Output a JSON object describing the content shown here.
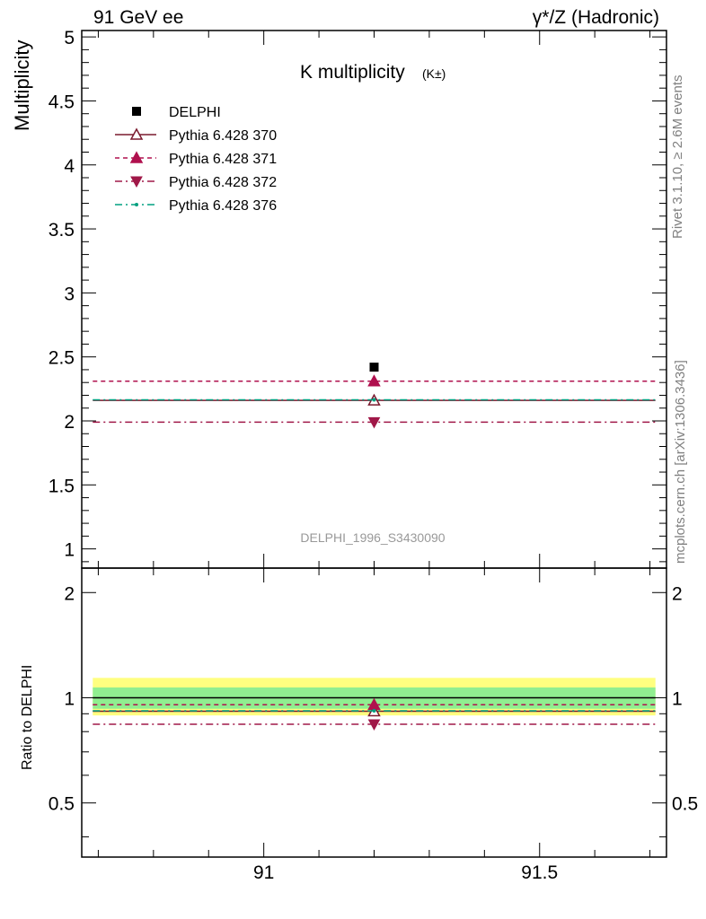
{
  "header": {
    "left": "91 GeV ee",
    "right": "γ*/Z (Hadronic)"
  },
  "side_labels": {
    "rivet": "Rivet 3.1.10, ≥ 2.6M events",
    "mcplots": "mcplots.cern.ch [arXiv:1306.3436]"
  },
  "colors": {
    "delphi": "#000000",
    "p370": "#7a1a2e",
    "p371": "#b0104e",
    "p372": "#a01848",
    "p376": "#00a080",
    "band_inner": "#90ee90",
    "band_outer": "#ffff80"
  },
  "chart_data": [
    {
      "type": "scatter",
      "title": "K multiplicity",
      "title_sub": "(K±)",
      "ylabel": "Multiplicity",
      "watermark": "DELPHI_1996_S3430090",
      "xlim": [
        90.67,
        91.73
      ],
      "ylim": [
        0.85,
        5.05
      ],
      "yticks": [
        1,
        1.5,
        2,
        2.5,
        3,
        3.5,
        4,
        4.5,
        5
      ],
      "ytick_labels": [
        "1",
        "1.5",
        "2",
        "2.5",
        "3",
        "3.5",
        "4",
        "4.5",
        "5"
      ],
      "legend_position": "top-left",
      "x_center": 91.2,
      "x_range": [
        90.69,
        91.71
      ],
      "series": [
        {
          "name": "DELPHI",
          "key": "delphi",
          "marker": "square",
          "line": "none",
          "y": 2.42
        },
        {
          "name": "Pythia 6.428 370",
          "key": "p370",
          "marker": "triangle-up-open",
          "line": "solid",
          "y": 2.16
        },
        {
          "name": "Pythia 6.428 371",
          "key": "p371",
          "marker": "triangle-up",
          "line": "dashed",
          "y": 2.31
        },
        {
          "name": "Pythia 6.428 372",
          "key": "p372",
          "marker": "triangle-down",
          "line": "dashdot",
          "y": 1.99
        },
        {
          "name": "Pythia 6.428 376",
          "key": "p376",
          "marker": "dot",
          "line": "dashdot",
          "y": 2.165
        }
      ]
    },
    {
      "type": "scatter",
      "ylabel": "Ratio to DELPHI",
      "xlim": [
        90.67,
        91.73
      ],
      "ylim": [
        0.35,
        2.35
      ],
      "ylog": true,
      "yticks": [
        0.5,
        1,
        2
      ],
      "ytick_labels": [
        "0.5",
        "1",
        "2"
      ],
      "xticks": [
        91,
        91.5
      ],
      "xtick_labels": [
        "91",
        "91.5"
      ],
      "band_inner": [
        0.93,
        1.07
      ],
      "band_outer": [
        0.89,
        1.14
      ],
      "x_center": 91.2,
      "x_range": [
        90.69,
        91.71
      ],
      "series": [
        {
          "name": "Pythia 6.428 370",
          "key": "p370",
          "marker": "triangle-up-open",
          "line": "solid",
          "y": 0.915
        },
        {
          "name": "Pythia 6.428 371",
          "key": "p371",
          "marker": "triangle-up",
          "line": "dashed",
          "y": 0.955
        },
        {
          "name": "Pythia 6.428 372",
          "key": "p372",
          "marker": "triangle-down",
          "line": "dashdot",
          "y": 0.84
        },
        {
          "name": "Pythia 6.428 376",
          "key": "p376",
          "marker": "dot",
          "line": "dashdot",
          "y": 0.918
        }
      ]
    }
  ]
}
